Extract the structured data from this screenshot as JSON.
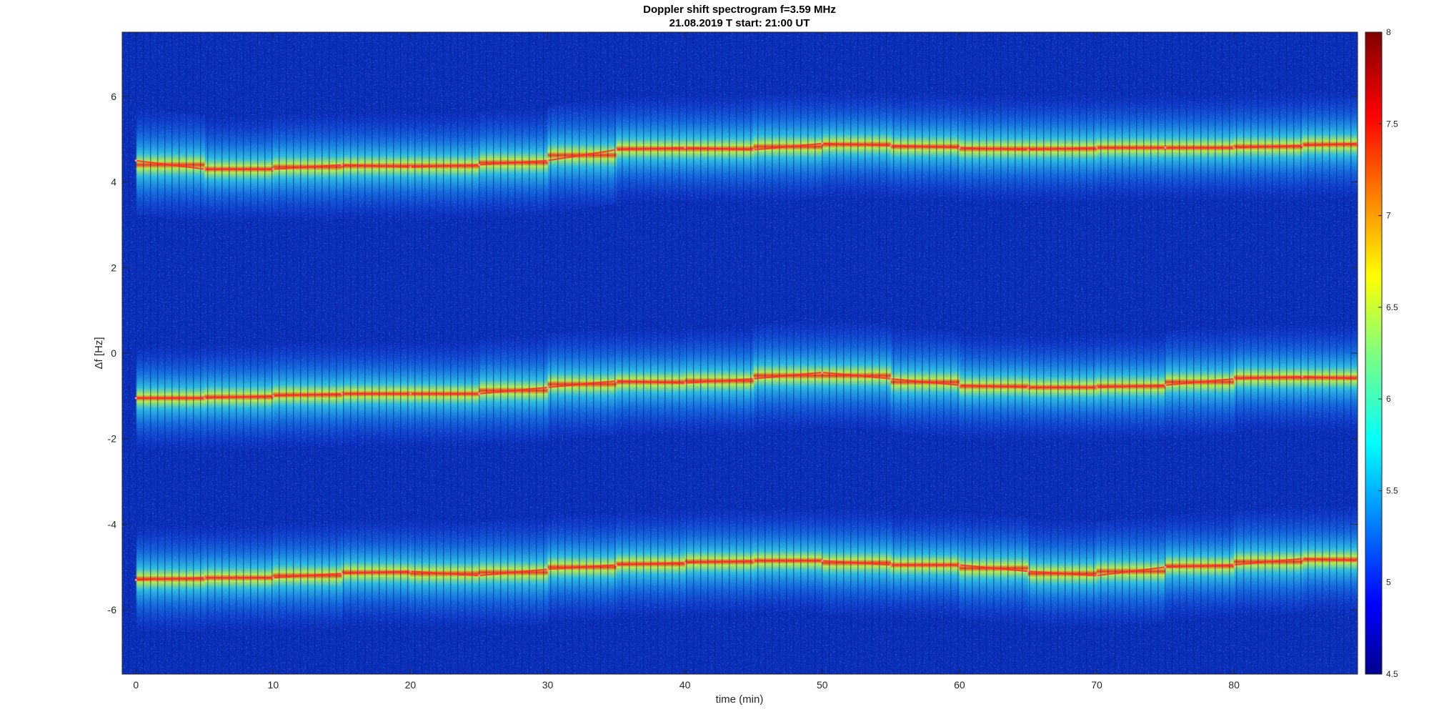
{
  "chart_data": {
    "type": "heatmap",
    "title": "Doppler shift spectrogram f=3.59 MHz",
    "subtitle": "21.08.2019   T start: 21:00 UT",
    "xlabel": "time (min)",
    "ylabel": "Δf [Hz]",
    "xlim": [
      -1,
      89
    ],
    "ylim": [
      -7.5,
      7.5
    ],
    "xticks": [
      0,
      10,
      20,
      30,
      40,
      50,
      60,
      70,
      80
    ],
    "yticks": [
      -6,
      -4,
      -2,
      0,
      2,
      4,
      6
    ],
    "colorbar": {
      "colormap": "jet",
      "range": [
        4.5,
        8
      ],
      "ticks": [
        4.5,
        5,
        5.5,
        6,
        6.5,
        7,
        7.5,
        8
      ]
    },
    "series": [
      {
        "x": [
          0,
          5,
          10,
          15,
          20,
          25,
          30,
          35,
          40,
          45,
          50,
          55,
          60,
          65,
          70,
          75,
          80,
          85,
          89
        ],
        "values": [
          4.5,
          4.3,
          4.3,
          4.4,
          4.35,
          4.4,
          4.5,
          4.75,
          4.8,
          4.75,
          4.9,
          4.85,
          4.8,
          4.75,
          4.8,
          4.8,
          4.8,
          4.85,
          4.9
        ]
      },
      {
        "x": [
          0,
          5,
          10,
          15,
          20,
          25,
          30,
          35,
          40,
          45,
          50,
          55,
          60,
          65,
          70,
          75,
          80,
          85,
          89
        ],
        "values": [
          -1.05,
          -1.05,
          -1.0,
          -0.95,
          -0.95,
          -0.95,
          -0.8,
          -0.65,
          -0.7,
          -0.6,
          -0.45,
          -0.6,
          -0.75,
          -0.8,
          -0.8,
          -0.75,
          -0.6,
          -0.55,
          -0.6
        ]
      },
      {
        "x": [
          0,
          5,
          10,
          15,
          20,
          25,
          30,
          35,
          40,
          45,
          50,
          55,
          60,
          65,
          70,
          75,
          80,
          85,
          89
        ],
        "values": [
          -5.3,
          -5.25,
          -5.25,
          -5.15,
          -5.1,
          -5.2,
          -5.05,
          -4.95,
          -4.9,
          -4.85,
          -4.85,
          -4.95,
          -4.95,
          -5.1,
          -5.2,
          -5.0,
          -4.95,
          -4.8,
          -4.85
        ]
      }
    ]
  }
}
